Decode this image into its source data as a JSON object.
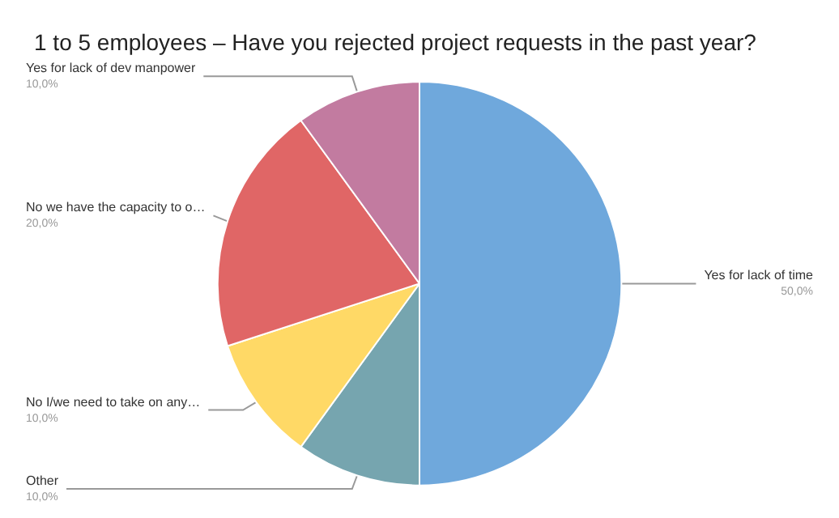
{
  "chart_data": {
    "type": "pie",
    "title": "1 to 5 employees – Have you rejected project requests in the past year?",
    "categories": [
      "Yes for lack of time",
      "Other",
      "No I/we need to take on any…",
      "No we have the capacity to o…",
      "Yes for lack of dev manpower"
    ],
    "values": [
      50,
      10,
      10,
      20,
      10
    ],
    "colors": [
      "#6fa8dc",
      "#76a5af",
      "#ffd966",
      "#e06666",
      "#c27ba0"
    ],
    "value_labels": [
      "50,0%",
      "10,0%",
      "10,0%",
      "20,0%",
      "10,0%"
    ],
    "legend": false
  }
}
